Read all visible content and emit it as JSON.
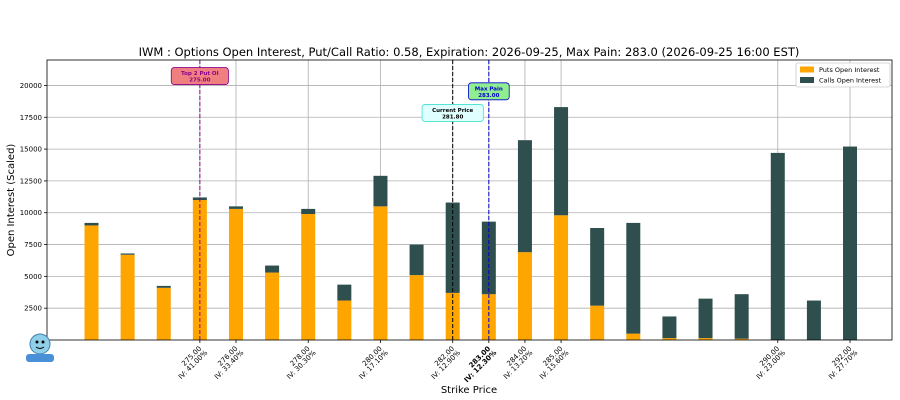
{
  "chart_data": {
    "type": "bar",
    "title": "IWM : Options Open Interest, Put/Call Ratio: 0.58, Expiration: 2026-09-25, Max Pain: 283.0 (2026-09-25 16:00 EST)",
    "xlabel": "Strike Price",
    "ylabel": "Open Interest (Scaled)",
    "ylim": [
      0,
      22000
    ],
    "yticks": [
      "2500",
      "5000",
      "7500",
      "10000",
      "12500",
      "15000",
      "17500",
      "20000"
    ],
    "grid": true,
    "stacked": true,
    "legend_position": "top-right",
    "series": [
      {
        "name": "Puts Open Interest",
        "color": "#FFA500",
        "values": [
          9000,
          6700,
          4100,
          11000,
          10300,
          5300,
          9900,
          3100,
          10500,
          5100,
          3700,
          3600,
          6900,
          9800,
          2700,
          500,
          150,
          150,
          100,
          0,
          0,
          0
        ]
      },
      {
        "name": "Calls Open Interest",
        "color": "#2F4F4F",
        "values": [
          200,
          100,
          150,
          200,
          200,
          550,
          400,
          1250,
          2400,
          2400,
          7100,
          5700,
          8800,
          8500,
          6100,
          8700,
          1700,
          3100,
          3500,
          14700,
          3100,
          15200
        ]
      }
    ],
    "xtick_labels": [
      {
        "index": 3,
        "strike": "275.00",
        "iv": "IV: 41.00%"
      },
      {
        "index": 4,
        "strike": "276.00",
        "iv": "IV: 33.40%"
      },
      {
        "index": 6,
        "strike": "278.00",
        "iv": "IV: 30.30%"
      },
      {
        "index": 8,
        "strike": "280.00",
        "iv": "IV: 17.10%"
      },
      {
        "index": 10,
        "strike": "282.00",
        "iv": "IV: 12.90%"
      },
      {
        "index": 11,
        "strike": "283.00",
        "iv": "IV: 12.30%"
      },
      {
        "index": 12,
        "strike": "284.00",
        "iv": "IV: 13.20%"
      },
      {
        "index": 13,
        "strike": "285.00",
        "iv": "IV: 15.60%"
      },
      {
        "index": 19,
        "strike": "290.00",
        "iv": "IV: 23.00%"
      },
      {
        "index": 21,
        "strike": "292.00",
        "iv": "IV: 27.70%"
      }
    ],
    "annotations": [
      {
        "label": "Top 2 Put OI",
        "value": "275.00",
        "index": 3,
        "y": 20700,
        "line_color": "#8B008B",
        "box_color": "#F08080",
        "text_color": "#8B008B"
      },
      {
        "label": "Current Price",
        "value": "281.80",
        "index": 10,
        "y": 17800,
        "line_color": "#000000",
        "box_color": "#E0FFFF",
        "text_color": "#000000"
      },
      {
        "label": "Max Pain",
        "value": "283.00",
        "index": 11,
        "y": 19500,
        "line_color": "#0000CD",
        "box_color": "#90EE90",
        "text_color": "#0000CD"
      }
    ]
  }
}
